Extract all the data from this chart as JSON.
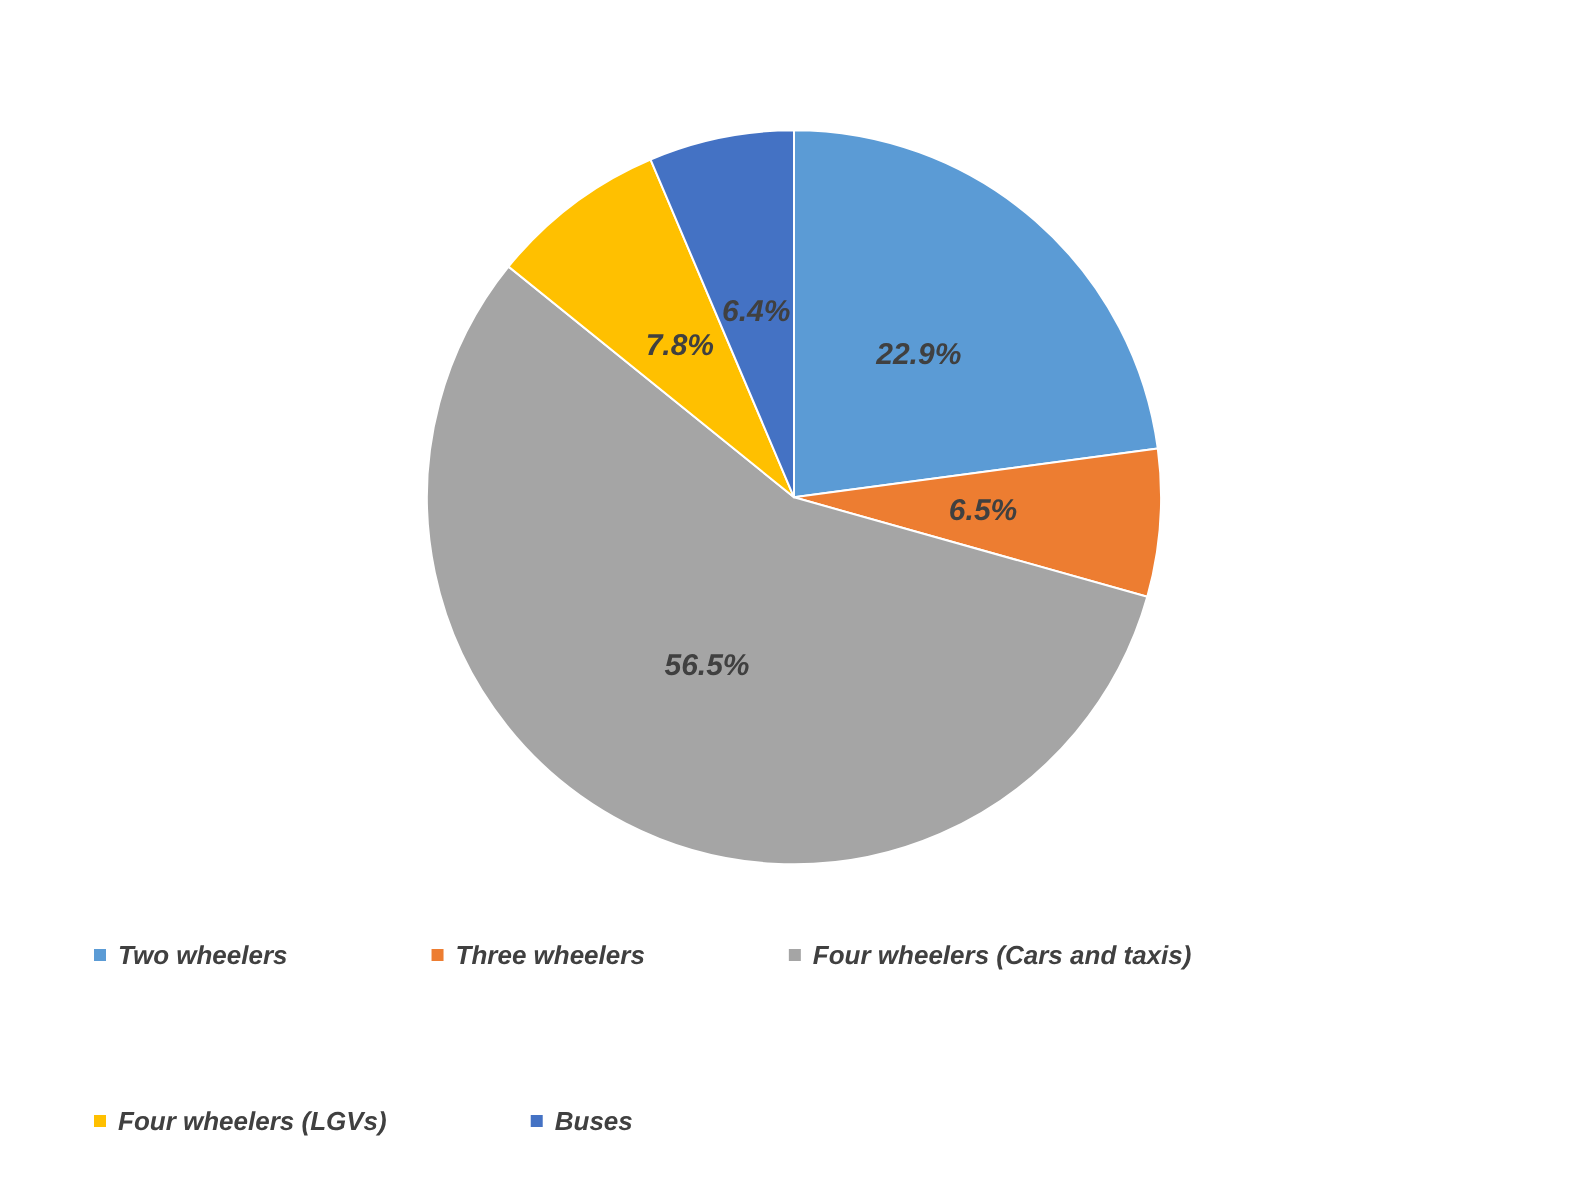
{
  "chart_data": {
    "type": "pie",
    "categories": [
      "Two wheelers",
      "Three wheelers",
      "Four wheelers (Cars and taxis)",
      "Four wheelers (LGVs)",
      "Buses"
    ],
    "values": [
      22.9,
      6.5,
      56.5,
      7.8,
      6.4
    ],
    "value_labels": [
      "22.9%",
      "6.5%",
      "56.5%",
      "7.8%",
      "6.4%"
    ],
    "colors": [
      "#5b9bd5",
      "#ed7d31",
      "#a5a5a5",
      "#ffc000",
      "#4472c4"
    ],
    "legend": "bottom"
  }
}
